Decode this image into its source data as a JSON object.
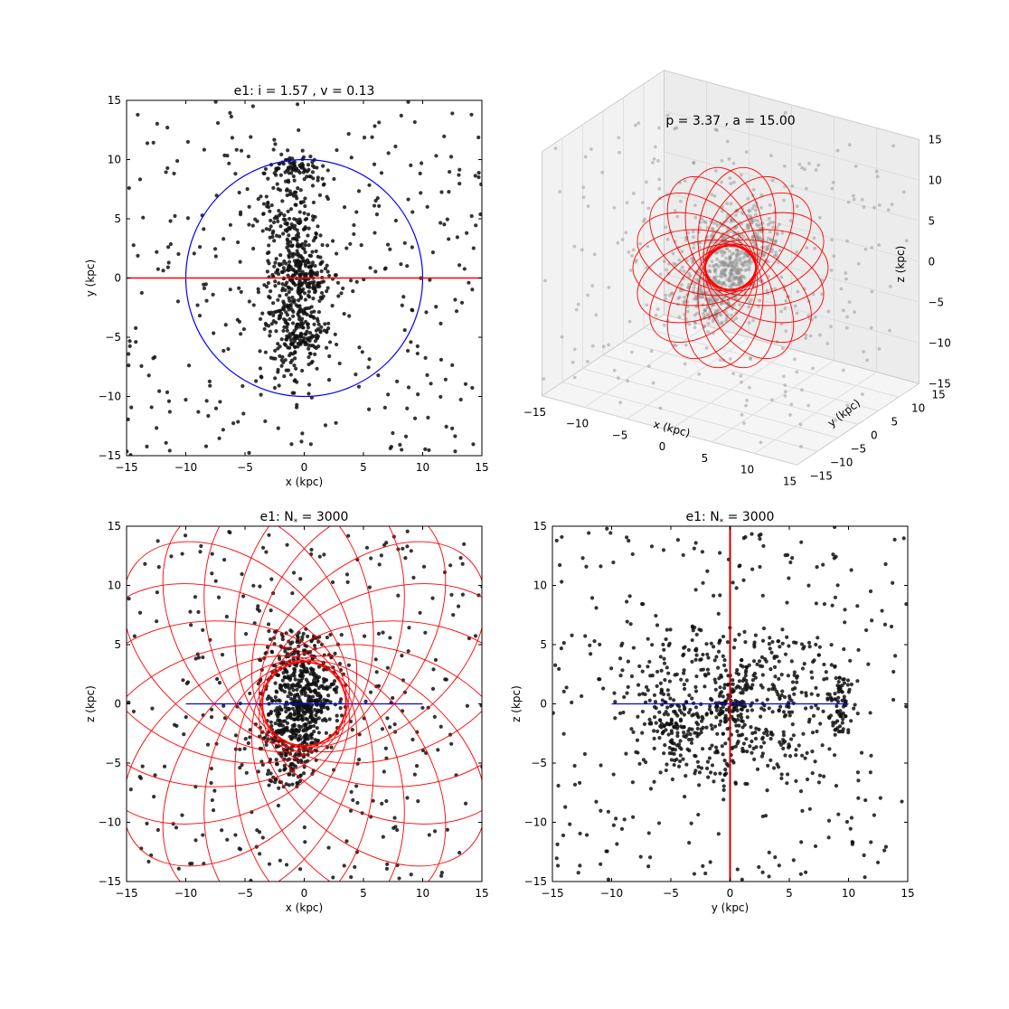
{
  "chart_data": [
    {
      "type": "scatter",
      "panel": "xy",
      "title": "e1: i = 1.57 , v = 0.13",
      "xlabel": "x (kpc)",
      "ylabel": "y (kpc)",
      "xlim": [
        -15,
        15
      ],
      "ylim": [
        -15,
        15
      ],
      "ticks": [
        -15,
        -10,
        -5,
        0,
        5,
        10,
        15
      ],
      "grid": false,
      "series": [
        {
          "kind": "points",
          "color": "#111111",
          "note_count_drawn": 0
        },
        {
          "kind": "circle",
          "color": "#0000ff",
          "center": [
            0,
            0
          ],
          "radius": 10
        },
        {
          "kind": "line",
          "color": "#ff0000",
          "x": [
            -15,
            15
          ],
          "y": [
            0,
            0
          ]
        }
      ]
    },
    {
      "type": "scatter",
      "panel": "3d",
      "title": "p = 3.37 , a = 15.00",
      "xlabel": "x (kpc)",
      "ylabel": "y (kpc)",
      "zlabel": "z (kpc)",
      "x_ticks": [
        -15,
        -10,
        -5,
        0,
        5,
        10,
        15
      ],
      "y_ticks": [
        -15,
        -10,
        -5,
        0,
        5,
        10,
        15
      ],
      "z_ticks": [
        -15,
        -10,
        -5,
        0,
        5,
        10,
        15
      ],
      "series": [
        {
          "kind": "points",
          "color": "#999999"
        },
        {
          "kind": "orbit_rings",
          "color": "#ff0000"
        }
      ]
    },
    {
      "type": "scatter",
      "panel": "xz",
      "title": "e1: N",
      "title_sub": "*",
      "title_rest": " =  3000",
      "xlabel": "x (kpc)",
      "ylabel": "z (kpc)",
      "xlim": [
        -15,
        15
      ],
      "ylim": [
        -15,
        15
      ],
      "ticks": [
        -15,
        -10,
        -5,
        0,
        5,
        10,
        15
      ],
      "series": [
        {
          "kind": "points",
          "color": "#111111"
        },
        {
          "kind": "line",
          "color": "#0000ff",
          "x": [
            -10,
            10
          ],
          "y": [
            0,
            0
          ]
        },
        {
          "kind": "orbit_rings",
          "color": "#ff0000"
        }
      ]
    },
    {
      "type": "scatter",
      "panel": "yz",
      "title": "e1: N",
      "title_sub": "*",
      "title_rest": " =  3000",
      "xlabel": "y (kpc)",
      "ylabel": "z (kpc)",
      "xlim": [
        -15,
        15
      ],
      "ylim": [
        -15,
        15
      ],
      "ticks": [
        -15,
        -10,
        -5,
        0,
        5,
        10,
        15
      ],
      "series": [
        {
          "kind": "points",
          "color": "#111111"
        },
        {
          "kind": "line",
          "color": "#0000ff",
          "x": [
            -10,
            10
          ],
          "y": [
            0,
            0
          ]
        },
        {
          "kind": "line",
          "color": "#cc0000",
          "x": [
            0,
            0
          ],
          "y": [
            -15,
            15
          ]
        }
      ]
    }
  ]
}
